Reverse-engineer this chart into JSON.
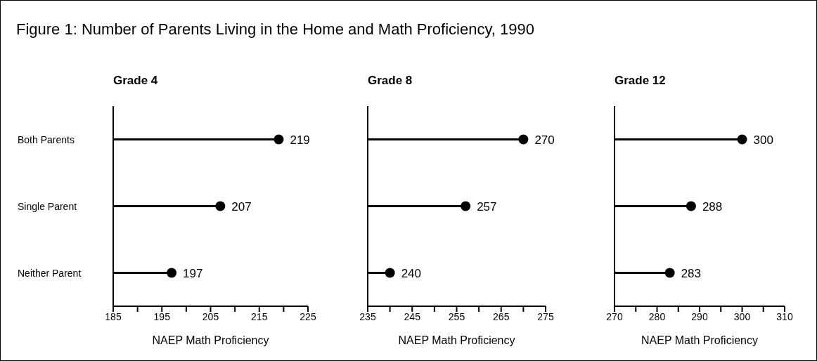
{
  "chart_data": [
    {
      "type": "lollipop",
      "orientation": "horizontal",
      "title": "Figure 1: Number of Parents Living in the Home and Math Proficiency, 1990",
      "subtitle": "Grade 4",
      "xlabel": "NAEP Math Proficiency",
      "categories": [
        "Both Parents",
        "Single Parent",
        "Neither Parent"
      ],
      "values": [
        219,
        207,
        197
      ],
      "color": "#000000",
      "marker": "circle",
      "data_labels": true,
      "xlim": [
        185,
        225
      ],
      "xticks": [
        185,
        {
          "value": 190,
          "label": null
        },
        195,
        {
          "value": 200,
          "label": null
        },
        205,
        {
          "value": 210,
          "label": null
        },
        215,
        {
          "value": 220,
          "label": null
        },
        225
      ]
    },
    {
      "type": "lollipop",
      "orientation": "horizontal",
      "subtitle": "Grade 8",
      "xlabel": "NAEP Math Proficiency",
      "categories": [
        null,
        null,
        null
      ],
      "values": [
        270,
        257,
        240
      ],
      "color": "#000000",
      "marker": "circle",
      "data_labels": true,
      "tick_labels": "x",
      "xlim": [
        235,
        275
      ],
      "xticks": [
        235,
        {
          "value": 240,
          "label": null
        },
        245,
        {
          "value": 250,
          "label": null
        },
        255,
        {
          "value": 260,
          "label": null
        },
        265,
        {
          "value": 270,
          "label": null
        },
        275
      ]
    },
    {
      "type": "lollipop",
      "orientation": "horizontal",
      "subtitle": "Grade 12",
      "xlabel": "NAEP Math Proficiency",
      "categories": [
        null,
        null,
        null
      ],
      "values": [
        300,
        288,
        283
      ],
      "color": "#000000",
      "marker": "circle",
      "data_labels": true,
      "tick_labels": "x",
      "xlim": [
        270,
        310
      ],
      "xticks": [
        270,
        {
          "value": 275,
          "label": null
        },
        280,
        {
          "value": 285,
          "label": null
        },
        290,
        {
          "value": 295,
          "label": null
        },
        300,
        {
          "value": 305,
          "label": null
        },
        310
      ]
    }
  ]
}
